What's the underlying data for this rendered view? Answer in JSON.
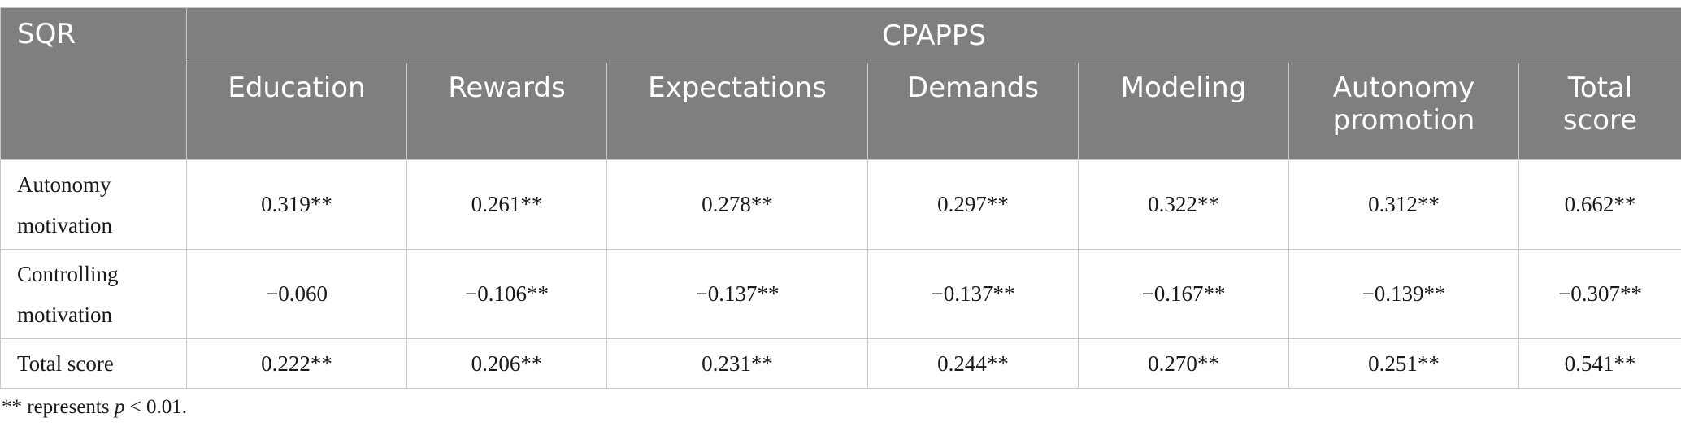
{
  "table": {
    "row_header": "SQR",
    "group_header": "CPAPPS",
    "columns": [
      "Education",
      "Rewards",
      "Expectations",
      "Demands",
      "Modeling",
      "Autonomy promotion",
      "Total score"
    ],
    "rows": [
      {
        "label": "Autonomy motivation",
        "values": [
          "0.319**",
          "0.261**",
          "0.278**",
          "0.297**",
          "0.322**",
          "0.312**",
          "0.662**"
        ]
      },
      {
        "label": "Controlling motivation",
        "values": [
          "−0.060",
          "−0.106**",
          "−0.137**",
          "−0.137**",
          "−0.167**",
          "−0.139**",
          "−0.307**"
        ]
      },
      {
        "label": "Total score",
        "values": [
          "0.222**",
          "0.206**",
          "0.231**",
          "0.244**",
          "0.270**",
          "0.251**",
          "0.541**"
        ]
      }
    ]
  },
  "footnote": {
    "prefix": "** represents ",
    "italic": "p",
    "suffix": " < 0.01."
  },
  "colors": {
    "header_background": "#7f7f7e",
    "header_text": "#ffffff",
    "grid_line": "#c9c9c9"
  }
}
